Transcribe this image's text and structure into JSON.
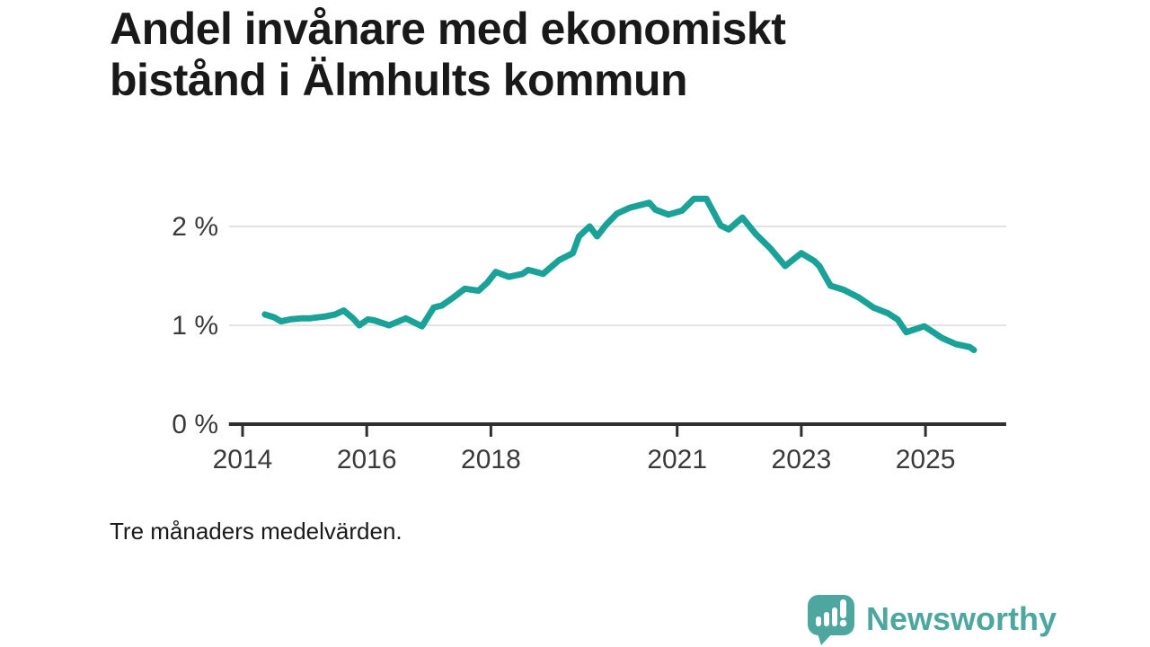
{
  "title": {
    "full": "Andel invånare med ekonomiskt bistånd i Älmhults kommun",
    "line1": "Andel invånare med ekonomiskt",
    "line2": "bistånd i Älmhults kommun"
  },
  "caption": "Tre månaders medelvärden.",
  "branding": {
    "name": "Newsworthy",
    "icon": "bar-chart-exclamation-speech-bubble-icon",
    "color": "#4ea79f"
  },
  "chart_data": {
    "type": "line",
    "title": "Andel invånare med ekonomiskt bistånd i Älmhults kommun",
    "subtitle": "Tre månaders medelvärden.",
    "xlabel": "",
    "ylabel": "",
    "unit": "%",
    "grid": "horizontal",
    "legend": "none",
    "x_axis": {
      "range": [
        2013.78,
        2026.3
      ],
      "ticks": [
        {
          "year": 2014,
          "label": "2014"
        },
        {
          "year": 2016,
          "label": "2016"
        },
        {
          "year": 2018,
          "label": "2018"
        },
        {
          "year": 2021,
          "label": "2021"
        },
        {
          "year": 2023,
          "label": "2023"
        },
        {
          "year": 2025,
          "label": "2025"
        }
      ]
    },
    "y_axis": {
      "range": [
        0,
        2.5
      ],
      "ticks": [
        {
          "value": 0,
          "label": "0 %"
        },
        {
          "value": 1,
          "label": "1 %"
        },
        {
          "value": 2,
          "label": "2 %"
        }
      ]
    },
    "colors": {
      "line": "#1aa298",
      "grid": "#e6e2e1",
      "axis": "#2f2f2f",
      "tick_text": "#3a3a3a"
    },
    "series": [
      {
        "name": "Andel invånare med ekonomiskt bistånd (%)",
        "points": [
          [
            2014.36,
            1.11
          ],
          [
            2014.51,
            1.08
          ],
          [
            2014.62,
            1.04
          ],
          [
            2014.77,
            1.06
          ],
          [
            2014.94,
            1.07
          ],
          [
            2015.08,
            1.07
          ],
          [
            2015.2,
            1.08
          ],
          [
            2015.34,
            1.09
          ],
          [
            2015.49,
            1.11
          ],
          [
            2015.63,
            1.15
          ],
          [
            2015.78,
            1.07
          ],
          [
            2015.88,
            1.0
          ],
          [
            2016.02,
            1.06
          ],
          [
            2016.12,
            1.05
          ],
          [
            2016.36,
            1.0
          ],
          [
            2016.63,
            1.07
          ],
          [
            2016.89,
            0.99
          ],
          [
            2017.08,
            1.18
          ],
          [
            2017.21,
            1.2
          ],
          [
            2017.37,
            1.27
          ],
          [
            2017.58,
            1.37
          ],
          [
            2017.8,
            1.35
          ],
          [
            2017.94,
            1.43
          ],
          [
            2018.08,
            1.54
          ],
          [
            2018.29,
            1.49
          ],
          [
            2018.51,
            1.52
          ],
          [
            2018.6,
            1.56
          ],
          [
            2018.73,
            1.54
          ],
          [
            2018.84,
            1.52
          ],
          [
            2019.1,
            1.66
          ],
          [
            2019.32,
            1.73
          ],
          [
            2019.42,
            1.9
          ],
          [
            2019.59,
            2.0
          ],
          [
            2019.71,
            1.9
          ],
          [
            2019.86,
            2.02
          ],
          [
            2020.03,
            2.13
          ],
          [
            2020.24,
            2.19
          ],
          [
            2020.43,
            2.22
          ],
          [
            2020.55,
            2.24
          ],
          [
            2020.65,
            2.17
          ],
          [
            2020.86,
            2.12
          ],
          [
            2021.08,
            2.16
          ],
          [
            2021.27,
            2.28
          ],
          [
            2021.47,
            2.28
          ],
          [
            2021.7,
            2.01
          ],
          [
            2021.83,
            1.97
          ],
          [
            2022.05,
            2.09
          ],
          [
            2022.27,
            1.92
          ],
          [
            2022.5,
            1.78
          ],
          [
            2022.74,
            1.6
          ],
          [
            2023.0,
            1.73
          ],
          [
            2023.21,
            1.65
          ],
          [
            2023.29,
            1.6
          ],
          [
            2023.47,
            1.4
          ],
          [
            2023.68,
            1.36
          ],
          [
            2023.93,
            1.28
          ],
          [
            2024.16,
            1.18
          ],
          [
            2024.4,
            1.12
          ],
          [
            2024.55,
            1.06
          ],
          [
            2024.69,
            0.93
          ],
          [
            2024.98,
            0.99
          ],
          [
            2025.27,
            0.87
          ],
          [
            2025.49,
            0.81
          ],
          [
            2025.71,
            0.78
          ],
          [
            2025.78,
            0.75
          ]
        ]
      }
    ]
  }
}
